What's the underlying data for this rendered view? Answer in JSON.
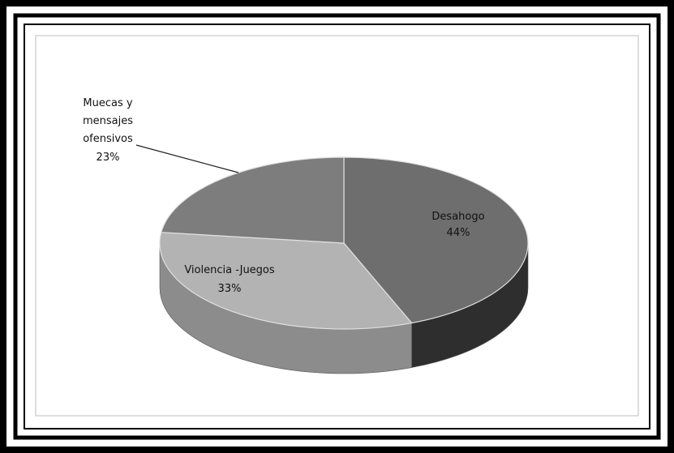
{
  "chart_data": {
    "type": "pie",
    "variant": "3d",
    "slices": [
      {
        "label": "Desahogo",
        "value": 44,
        "value_label": "44%",
        "color": "#6e6e6e",
        "side_color": "#2e2e2e"
      },
      {
        "label": "Violencia -Juegos",
        "value": 33,
        "value_label": "33%",
        "color": "#b3b3b3",
        "side_color": "#8c8c8c"
      },
      {
        "label_lines": [
          "Muecas y",
          "mensajes",
          "ofensivos"
        ],
        "value": 23,
        "value_label": "23%",
        "color": "#7d7d7d",
        "side_color": "#5a5a5a"
      }
    ],
    "legend": "none",
    "data_labels": "on slices",
    "background": "#ffffff",
    "frame_color": "#000000"
  }
}
